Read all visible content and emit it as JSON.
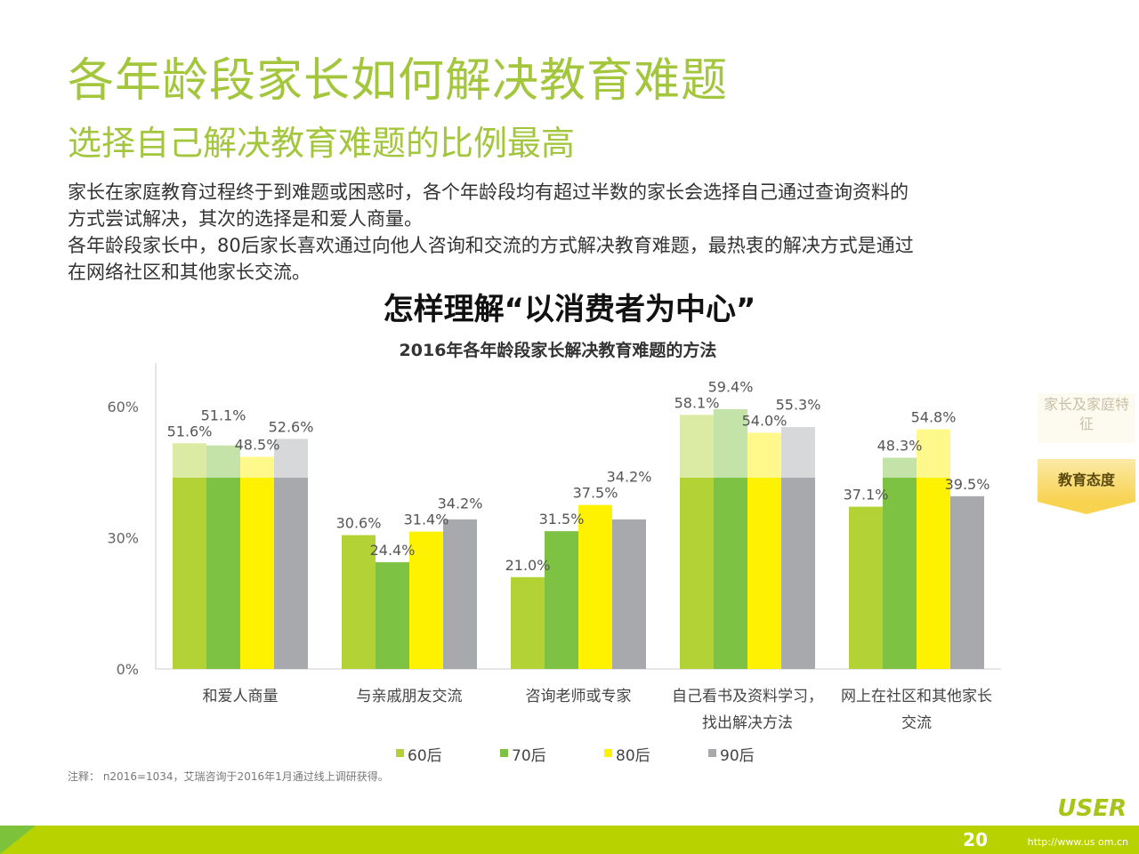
{
  "header": {
    "title": "各年龄段家长如何解决教育难题",
    "subtitle": "选择自己解决教育难题的比例最高",
    "body_lines": [
      "家长在家庭教育过程终于到难题或困惑时，各个年龄段均有超过半数的家长会选择自己通过查询资料的",
      "方式尝试解决，其次的选择是和爱人商量。",
      "各年龄段家长中，80后家长喜欢通过向他人咨询和交流的方式解决教育难题，最热衷的解决方式是通过",
      "在网络社区和其他家长交流。"
    ]
  },
  "overlay_title": "怎样理解“以消费者为中心”",
  "side_tabs": [
    {
      "label": "家长及家庭特征",
      "active": false
    },
    {
      "label": "教育态度",
      "active": true
    }
  ],
  "chart_data": {
    "type": "bar",
    "title": "2016年各年龄段家长解决教育难题的方法",
    "categories": [
      [
        "和爱人商量"
      ],
      [
        "与亲戚朋友交流"
      ],
      [
        "咨询老师或专家"
      ],
      [
        "自己看书及资料学习，",
        "找出解决方法"
      ],
      [
        "网上在社区和其他家长",
        "交流"
      ]
    ],
    "series": [
      {
        "name": "60后",
        "color": "#b2d235",
        "values": [
          51.6,
          30.6,
          21.0,
          58.1,
          37.1
        ]
      },
      {
        "name": "70后",
        "color": "#7dc242",
        "values": [
          51.1,
          24.4,
          31.5,
          59.4,
          48.3
        ]
      },
      {
        "name": "80后",
        "color": "#fff200",
        "values": [
          48.5,
          31.4,
          37.5,
          54.0,
          54.8
        ]
      },
      {
        "name": "90后",
        "color": "#a7a9ac",
        "values": [
          52.6,
          34.2,
          34.2,
          55.3,
          39.5
        ]
      }
    ],
    "yticks": [
      "0%",
      "30%",
      "60%"
    ],
    "ylim": [
      0,
      60
    ],
    "legend": "bottom",
    "grid": false
  },
  "note": "注释： n2016=1034，艾瑞咨询于2016年1月通过线上调研获得。",
  "footer": {
    "logo": "USER",
    "url": "http://www.us    om.cn",
    "page": "20"
  }
}
